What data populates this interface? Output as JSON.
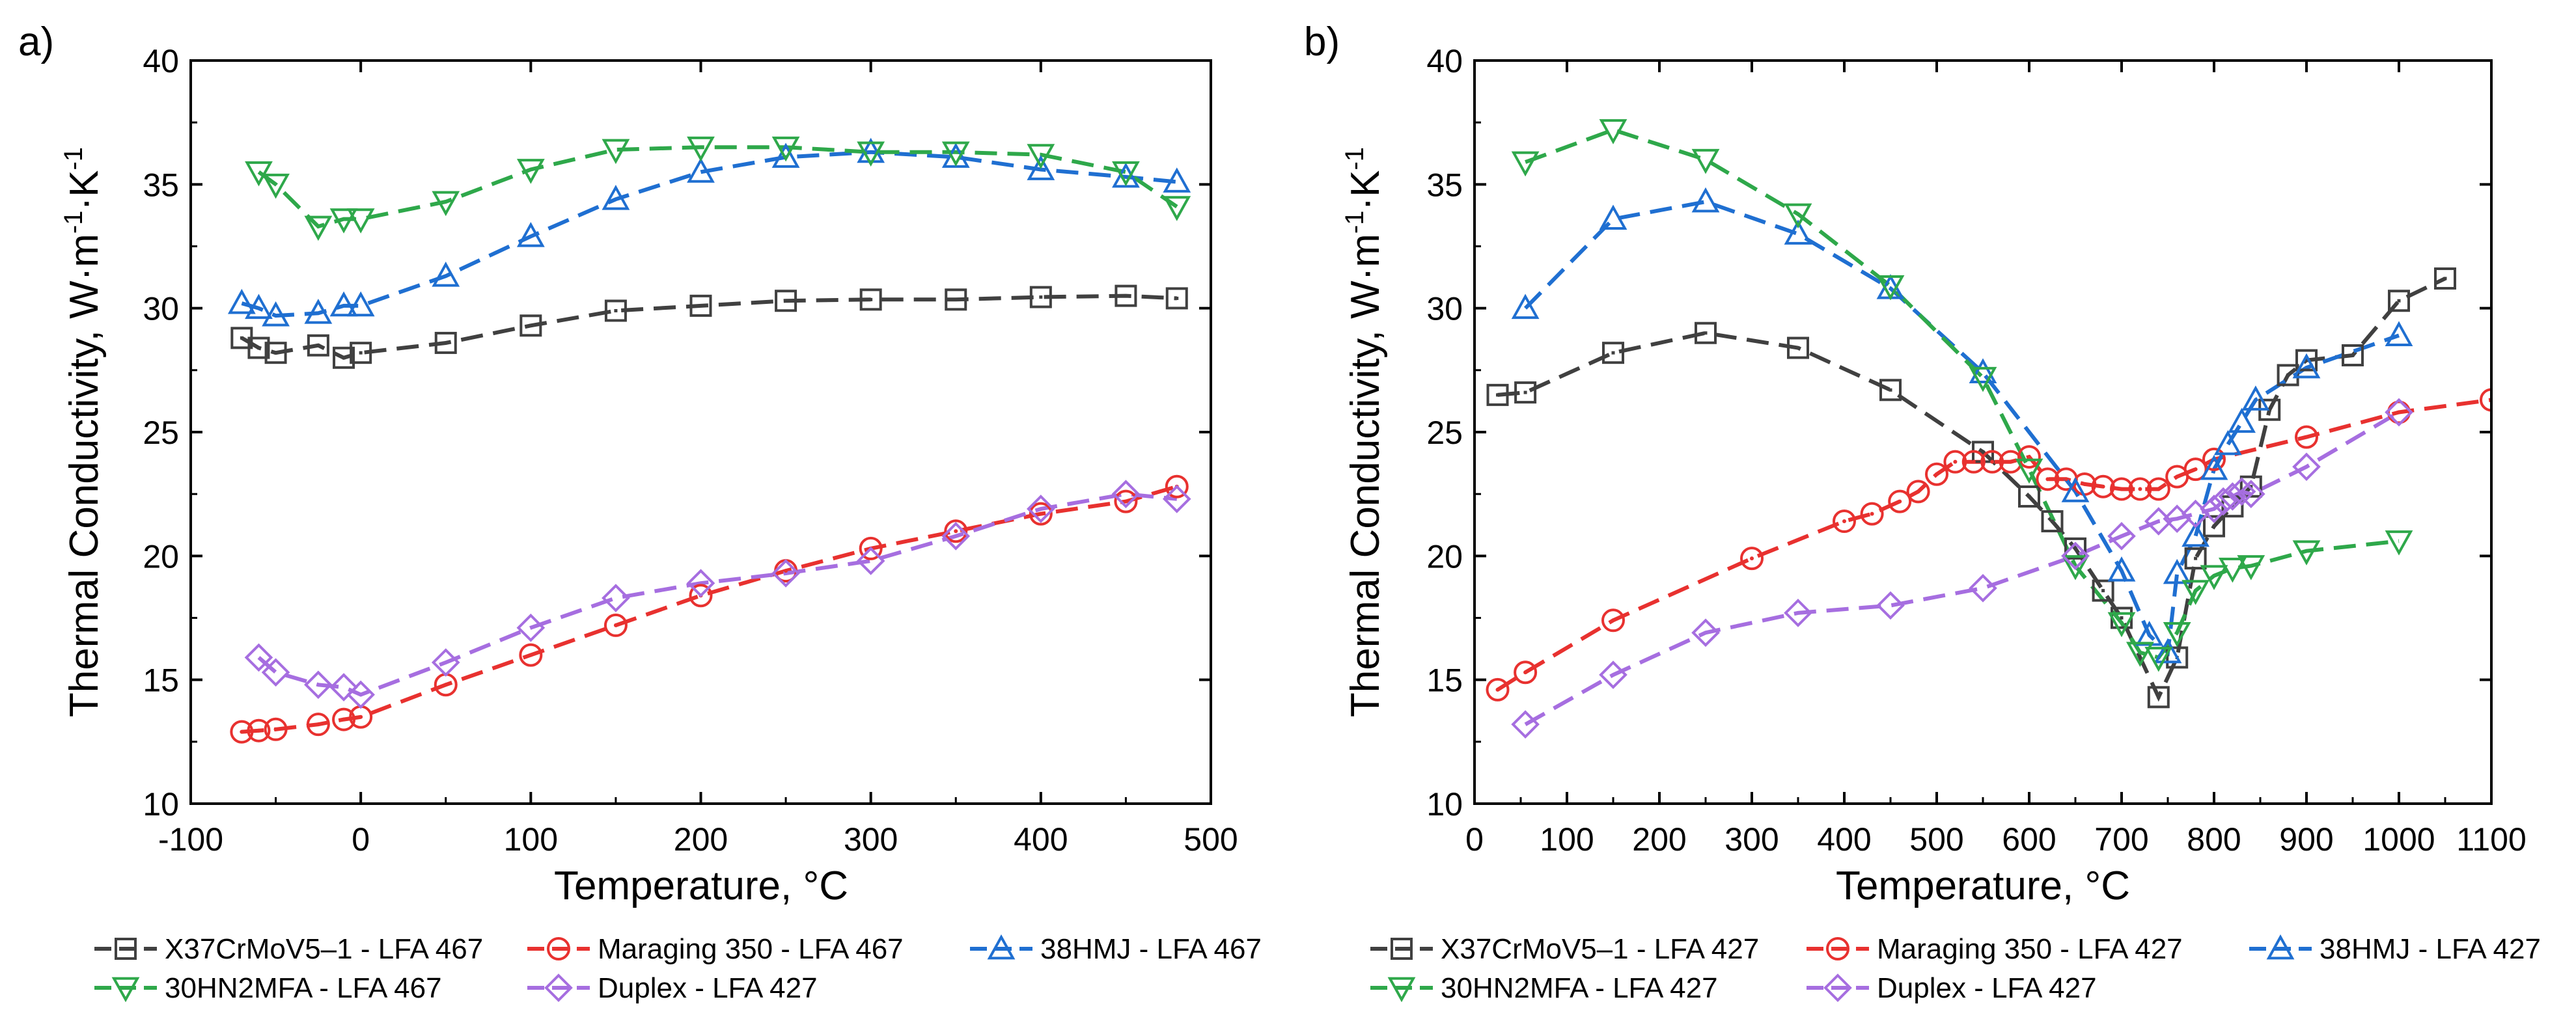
{
  "chart_data": [
    {
      "panel_label": "a)",
      "type": "line",
      "xlabel": "Temperature, °C",
      "ylabel_main": "Thermal Conductivity, W·m",
      "ylabel_sup1": "-1",
      "ylabel_mid": "·K",
      "ylabel_sup2": "-1",
      "xlim": [
        -100,
        500
      ],
      "ylim": [
        10,
        40
      ],
      "xticks": [
        -100,
        0,
        100,
        200,
        300,
        400,
        500
      ],
      "xtick_labels": [
        "-100",
        "0",
        "100",
        "200",
        "300",
        "400",
        "500"
      ],
      "yticks": [
        10,
        15,
        20,
        25,
        30,
        35,
        40
      ],
      "ytick_labels": [
        "10",
        "15",
        "20",
        "25",
        "30",
        "35",
        "40"
      ],
      "legend_position": "bottom",
      "series": [
        {
          "name": "X37CrMoV5–1 - LFA 467",
          "color": "#404040",
          "marker": "square",
          "x": [
            -70,
            -60,
            -50,
            -25,
            -10,
            0,
            50,
            100,
            150,
            200,
            250,
            300,
            350,
            400,
            450,
            480
          ],
          "y": [
            28.8,
            28.4,
            28.2,
            28.5,
            28.0,
            28.2,
            28.6,
            29.3,
            29.9,
            30.1,
            30.3,
            30.35,
            30.35,
            30.45,
            30.5,
            30.4
          ]
        },
        {
          "name": "Maraging 350 - LFA 467",
          "color": "#e8312f",
          "marker": "circle",
          "x": [
            -70,
            -60,
            -50,
            -25,
            -10,
            0,
            50,
            100,
            150,
            200,
            250,
            300,
            350,
            400,
            450,
            480
          ],
          "y": [
            12.9,
            12.95,
            13.0,
            13.2,
            13.4,
            13.5,
            14.8,
            16.0,
            17.2,
            18.4,
            19.4,
            20.3,
            21.0,
            21.7,
            22.2,
            22.8
          ]
        },
        {
          "name": "38HMJ - LFA 467",
          "color": "#1f6fd1",
          "marker": "triangle-up",
          "x": [
            -70,
            -60,
            -50,
            -25,
            -10,
            0,
            50,
            100,
            150,
            200,
            250,
            300,
            350,
            400,
            450,
            480
          ],
          "y": [
            30.2,
            30.0,
            29.7,
            29.8,
            30.1,
            30.1,
            31.3,
            32.9,
            34.4,
            35.5,
            36.1,
            36.3,
            36.1,
            35.6,
            35.3,
            35.1
          ]
        },
        {
          "name": "30HN2MFA - LFA 467",
          "color": "#2ea84a",
          "marker": "triangle-down",
          "x": [
            -60,
            -50,
            -25,
            -10,
            0,
            50,
            100,
            150,
            200,
            250,
            300,
            350,
            400,
            450,
            480
          ],
          "y": [
            35.5,
            35.0,
            33.3,
            33.6,
            33.6,
            34.3,
            35.6,
            36.4,
            36.5,
            36.5,
            36.3,
            36.3,
            36.2,
            35.5,
            34.1
          ]
        },
        {
          "name": "Duplex - LFA 427",
          "color": "#a66ee0",
          "marker": "diamond",
          "x": [
            -60,
            -50,
            -25,
            -10,
            0,
            50,
            100,
            150,
            200,
            250,
            300,
            350,
            400,
            450,
            480
          ],
          "y": [
            15.9,
            15.3,
            14.8,
            14.7,
            14.4,
            15.7,
            17.1,
            18.3,
            18.9,
            19.3,
            19.8,
            20.8,
            21.9,
            22.5,
            22.3
          ]
        }
      ]
    },
    {
      "panel_label": "b)",
      "type": "line",
      "xlabel": "Temperature, °C",
      "ylabel_main": "Thermal Conductivity, W·m",
      "ylabel_sup1": "-1",
      "ylabel_mid": "·K",
      "ylabel_sup2": "-1",
      "xlim": [
        0,
        1100
      ],
      "ylim": [
        10,
        40
      ],
      "xticks": [
        0,
        100,
        200,
        300,
        400,
        500,
        600,
        700,
        800,
        900,
        1000,
        1100
      ],
      "xtick_labels": [
        "0",
        "100",
        "200",
        "300",
        "400",
        "500",
        "600",
        "700",
        "800",
        "900",
        "1000",
        "1100"
      ],
      "yticks": [
        10,
        15,
        20,
        25,
        30,
        35,
        40
      ],
      "ytick_labels": [
        "10",
        "15",
        "20",
        "25",
        "30",
        "35",
        "40"
      ],
      "legend_position": "bottom",
      "series": [
        {
          "name": "X37CrMoV5–1 - LFA 427",
          "color": "#404040",
          "marker": "square",
          "x": [
            25,
            55,
            150,
            250,
            350,
            450,
            550,
            600,
            625,
            650,
            680,
            700,
            740,
            760,
            780,
            800,
            820,
            840,
            860,
            880,
            900,
            950,
            1000,
            1050
          ],
          "y": [
            26.5,
            26.6,
            28.2,
            29.0,
            28.4,
            26.7,
            24.2,
            22.4,
            21.4,
            20.3,
            18.6,
            17.5,
            14.3,
            15.9,
            19.9,
            21.2,
            22.0,
            22.8,
            25.9,
            27.3,
            27.9,
            28.1,
            30.3,
            31.2
          ]
        },
        {
          "name": "Maraging 350 - LFA 427",
          "color": "#e8312f",
          "marker": "circle",
          "x": [
            25,
            55,
            150,
            300,
            400,
            430,
            460,
            480,
            500,
            520,
            540,
            560,
            580,
            600,
            620,
            640,
            660,
            680,
            700,
            720,
            740,
            760,
            780,
            800,
            900,
            1000,
            1100
          ],
          "y": [
            14.6,
            15.3,
            17.4,
            19.9,
            21.4,
            21.7,
            22.2,
            22.6,
            23.3,
            23.8,
            23.8,
            23.8,
            23.8,
            24.0,
            23.1,
            23.1,
            22.9,
            22.8,
            22.7,
            22.7,
            22.7,
            23.2,
            23.5,
            23.9,
            24.8,
            25.8,
            26.3
          ]
        },
        {
          "name": "38HMJ - LFA 427",
          "color": "#1f6fd1",
          "marker": "triangle-up",
          "x": [
            55,
            150,
            250,
            350,
            450,
            550,
            650,
            700,
            730,
            750,
            760,
            780,
            800,
            815,
            830,
            845,
            900,
            1000
          ],
          "y": [
            30.0,
            33.6,
            34.3,
            33.0,
            30.8,
            27.4,
            22.6,
            19.4,
            16.8,
            16.1,
            19.3,
            20.8,
            23.5,
            24.5,
            25.4,
            26.3,
            27.6,
            28.9
          ]
        },
        {
          "name": "30HN2MFA - LFA 427",
          "color": "#2ea84a",
          "marker": "triangle-down",
          "x": [
            55,
            150,
            250,
            350,
            450,
            550,
            600,
            650,
            700,
            720,
            740,
            760,
            780,
            800,
            820,
            840,
            900,
            1000
          ],
          "y": [
            35.9,
            37.2,
            36.0,
            33.8,
            30.9,
            27.2,
            23.5,
            19.6,
            17.3,
            16.1,
            15.9,
            16.9,
            18.6,
            19.2,
            19.5,
            19.6,
            20.2,
            20.6
          ]
        },
        {
          "name": "Duplex - LFA 427",
          "color": "#a66ee0",
          "marker": "diamond",
          "x": [
            55,
            150,
            250,
            350,
            450,
            550,
            650,
            700,
            740,
            760,
            780,
            800,
            810,
            820,
            830,
            840,
            900,
            1000
          ],
          "y": [
            13.2,
            15.2,
            16.9,
            17.7,
            18.0,
            18.7,
            20.0,
            20.8,
            21.4,
            21.5,
            21.7,
            21.9,
            22.2,
            22.4,
            22.6,
            22.5,
            23.6,
            25.8
          ]
        }
      ]
    }
  ]
}
